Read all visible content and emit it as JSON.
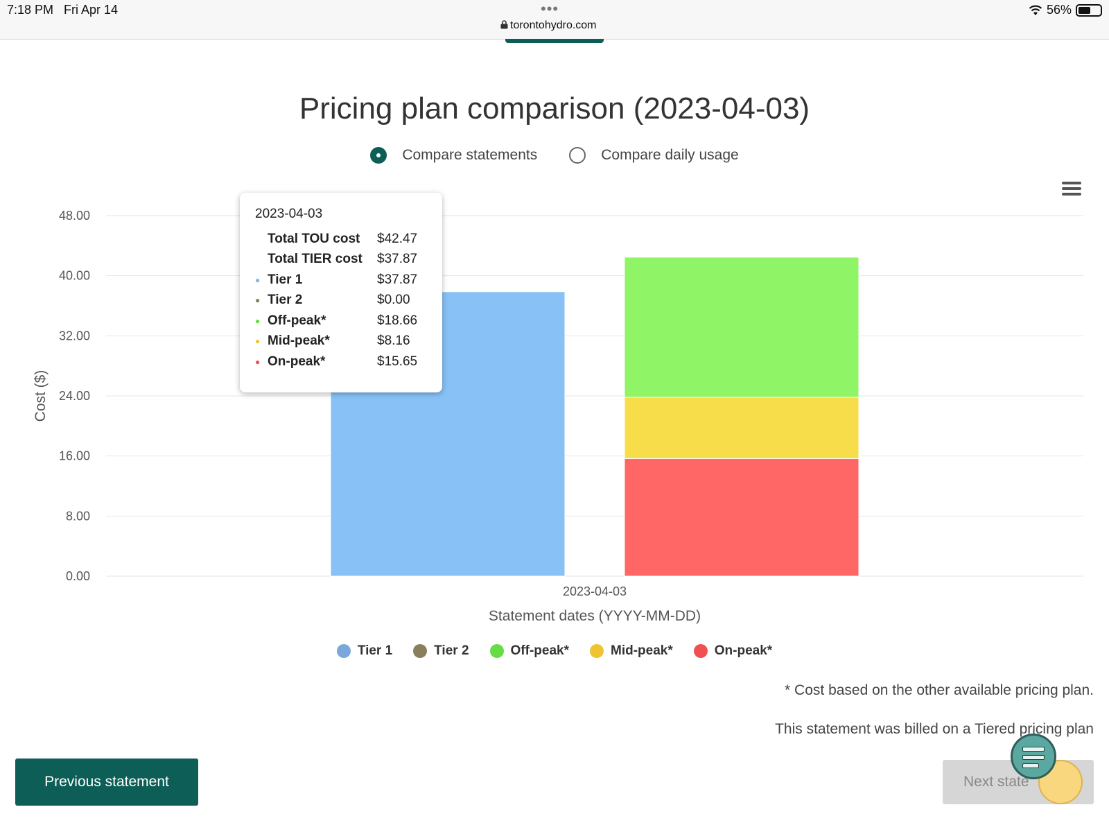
{
  "statusbar": {
    "time": "7:18 PM",
    "date": "Fri Apr 14",
    "dots": "•••",
    "url": "torontohydro.com",
    "battery": "56%",
    "battery_level": 0.56
  },
  "page_title": "Pricing plan comparison (2023-04-03)",
  "radio_options": [
    {
      "label": "Compare statements",
      "checked": true
    },
    {
      "label": "Compare daily usage",
      "checked": false
    }
  ],
  "tooltip": {
    "date": "2023-04-03",
    "rows": [
      {
        "label": "Total TOU cost",
        "value": "$42.47",
        "color": ""
      },
      {
        "label": "Total TIER cost",
        "value": "$37.87",
        "color": ""
      },
      {
        "label": "Tier 1",
        "value": "$37.87",
        "color": "#7cb5ec"
      },
      {
        "label": "Tier 2",
        "value": "$0.00",
        "color": "#8a7f5c"
      },
      {
        "label": "Off-peak*",
        "value": "$18.66",
        "color": "#66dd44"
      },
      {
        "label": "Mid-peak*",
        "value": "$8.16",
        "color": "#f0c330"
      },
      {
        "label": "On-peak*",
        "value": "$15.65",
        "color": "#f25050"
      }
    ]
  },
  "chart_data": {
    "type": "bar",
    "stacked": true,
    "categories": [
      "2023-04-03"
    ],
    "xlabel": "Statement dates (YYYY-MM-DD)",
    "ylabel": "Cost ($)",
    "ylim": [
      0,
      48
    ],
    "yticks": [
      "0.00",
      "8.00",
      "16.00",
      "24.00",
      "32.00",
      "40.00",
      "48.00"
    ],
    "grid": true,
    "legend_position": "bottom",
    "stacks": [
      {
        "name": "TIER",
        "segments": [
          {
            "name": "Tier 1",
            "value": 37.87,
            "color": "#88c1f5"
          },
          {
            "name": "Tier 2",
            "value": 0.0,
            "color": "#8a7f5c"
          }
        ]
      },
      {
        "name": "TOU",
        "segments": [
          {
            "name": "On-peak*",
            "value": 15.65,
            "color": "#ff6666"
          },
          {
            "name": "Mid-peak*",
            "value": 8.16,
            "color": "#f8dd4a"
          },
          {
            "name": "Off-peak*",
            "value": 18.66,
            "color": "#8ff567"
          }
        ]
      }
    ]
  },
  "legend": [
    {
      "label": "Tier 1",
      "color": "#7aa8dc"
    },
    {
      "label": "Tier 2",
      "color": "#8a7f5c"
    },
    {
      "label": "Off-peak*",
      "color": "#66dd44"
    },
    {
      "label": "Mid-peak*",
      "color": "#f0c330"
    },
    {
      "label": "On-peak*",
      "color": "#f25050"
    }
  ],
  "footnote": "* Cost based on the other available pricing plan.",
  "billed_note": "This statement was billed on a Tiered pricing plan",
  "buttons": {
    "previous": "Previous statement",
    "next": "Next state"
  },
  "accent_color": "#0d5e56"
}
